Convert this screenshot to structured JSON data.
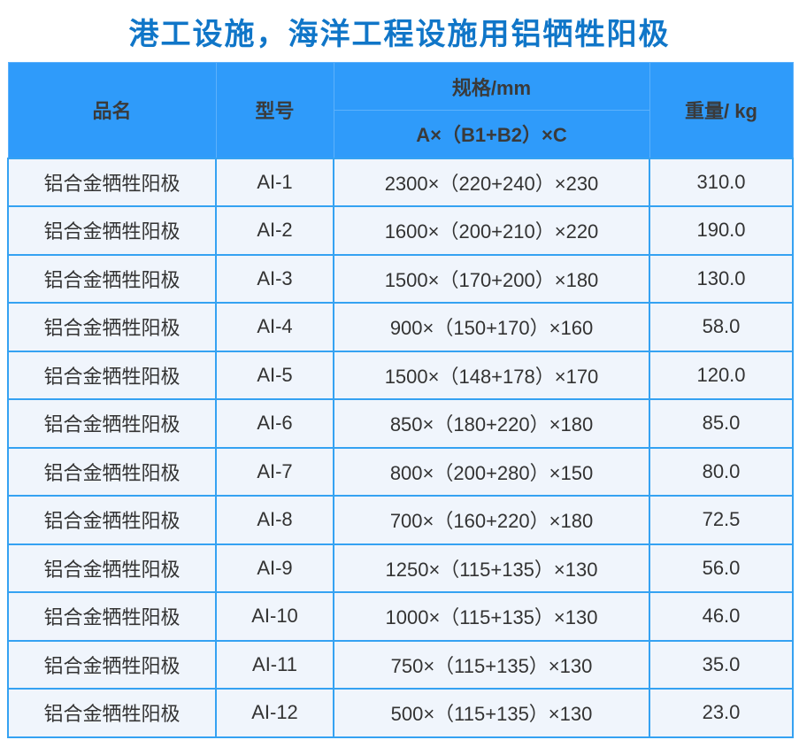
{
  "title": "港工设施，海洋工程设施用铝牺牲阳极",
  "colors": {
    "header_bg": "#2f9bfa",
    "border": "#35a2f2",
    "header_divider": "#5cb1fb",
    "row_bg": "#f0f5fc",
    "title": "#1076c8",
    "header_text": "#3a3a3a",
    "cell_text": "#333333"
  },
  "table": {
    "headers": {
      "product": "品名",
      "model": "型号",
      "spec": "规格/mm",
      "spec_formula": "A×（B1+B2）×C",
      "weight": "重量/ kg"
    },
    "rows": [
      {
        "product": "铝合金牺牲阳极",
        "model": "AI-1",
        "spec": "2300×（220+240）×230",
        "weight": "310.0"
      },
      {
        "product": "铝合金牺牲阳极",
        "model": "AI-2",
        "spec": "1600×（200+210）×220",
        "weight": "190.0"
      },
      {
        "product": "铝合金牺牲阳极",
        "model": "AI-3",
        "spec": "1500×（170+200）×180",
        "weight": "130.0"
      },
      {
        "product": "铝合金牺牲阳极",
        "model": "AI-4",
        "spec": "900×（150+170）×160",
        "weight": "58.0"
      },
      {
        "product": "铝合金牺牲阳极",
        "model": "AI-5",
        "spec": "1500×（148+178）×170",
        "weight": "120.0"
      },
      {
        "product": "铝合金牺牲阳极",
        "model": "AI-6",
        "spec": "850×（180+220）×180",
        "weight": "85.0"
      },
      {
        "product": "铝合金牺牲阳极",
        "model": "AI-7",
        "spec": "800×（200+280）×150",
        "weight": "80.0"
      },
      {
        "product": "铝合金牺牲阳极",
        "model": "AI-8",
        "spec": "700×（160+220）×180",
        "weight": "72.5"
      },
      {
        "product": "铝合金牺牲阳极",
        "model": "AI-9",
        "spec": "1250×（115+135）×130",
        "weight": "56.0"
      },
      {
        "product": "铝合金牺牲阳极",
        "model": "AI-10",
        "spec": "1000×（115+135）×130",
        "weight": "46.0"
      },
      {
        "product": "铝合金牺牲阳极",
        "model": "AI-11",
        "spec": "750×（115+135）×130",
        "weight": "35.0"
      },
      {
        "product": "铝合金牺牲阳极",
        "model": "AI-12",
        "spec": "500×（115+135）×130",
        "weight": "23.0"
      }
    ]
  }
}
